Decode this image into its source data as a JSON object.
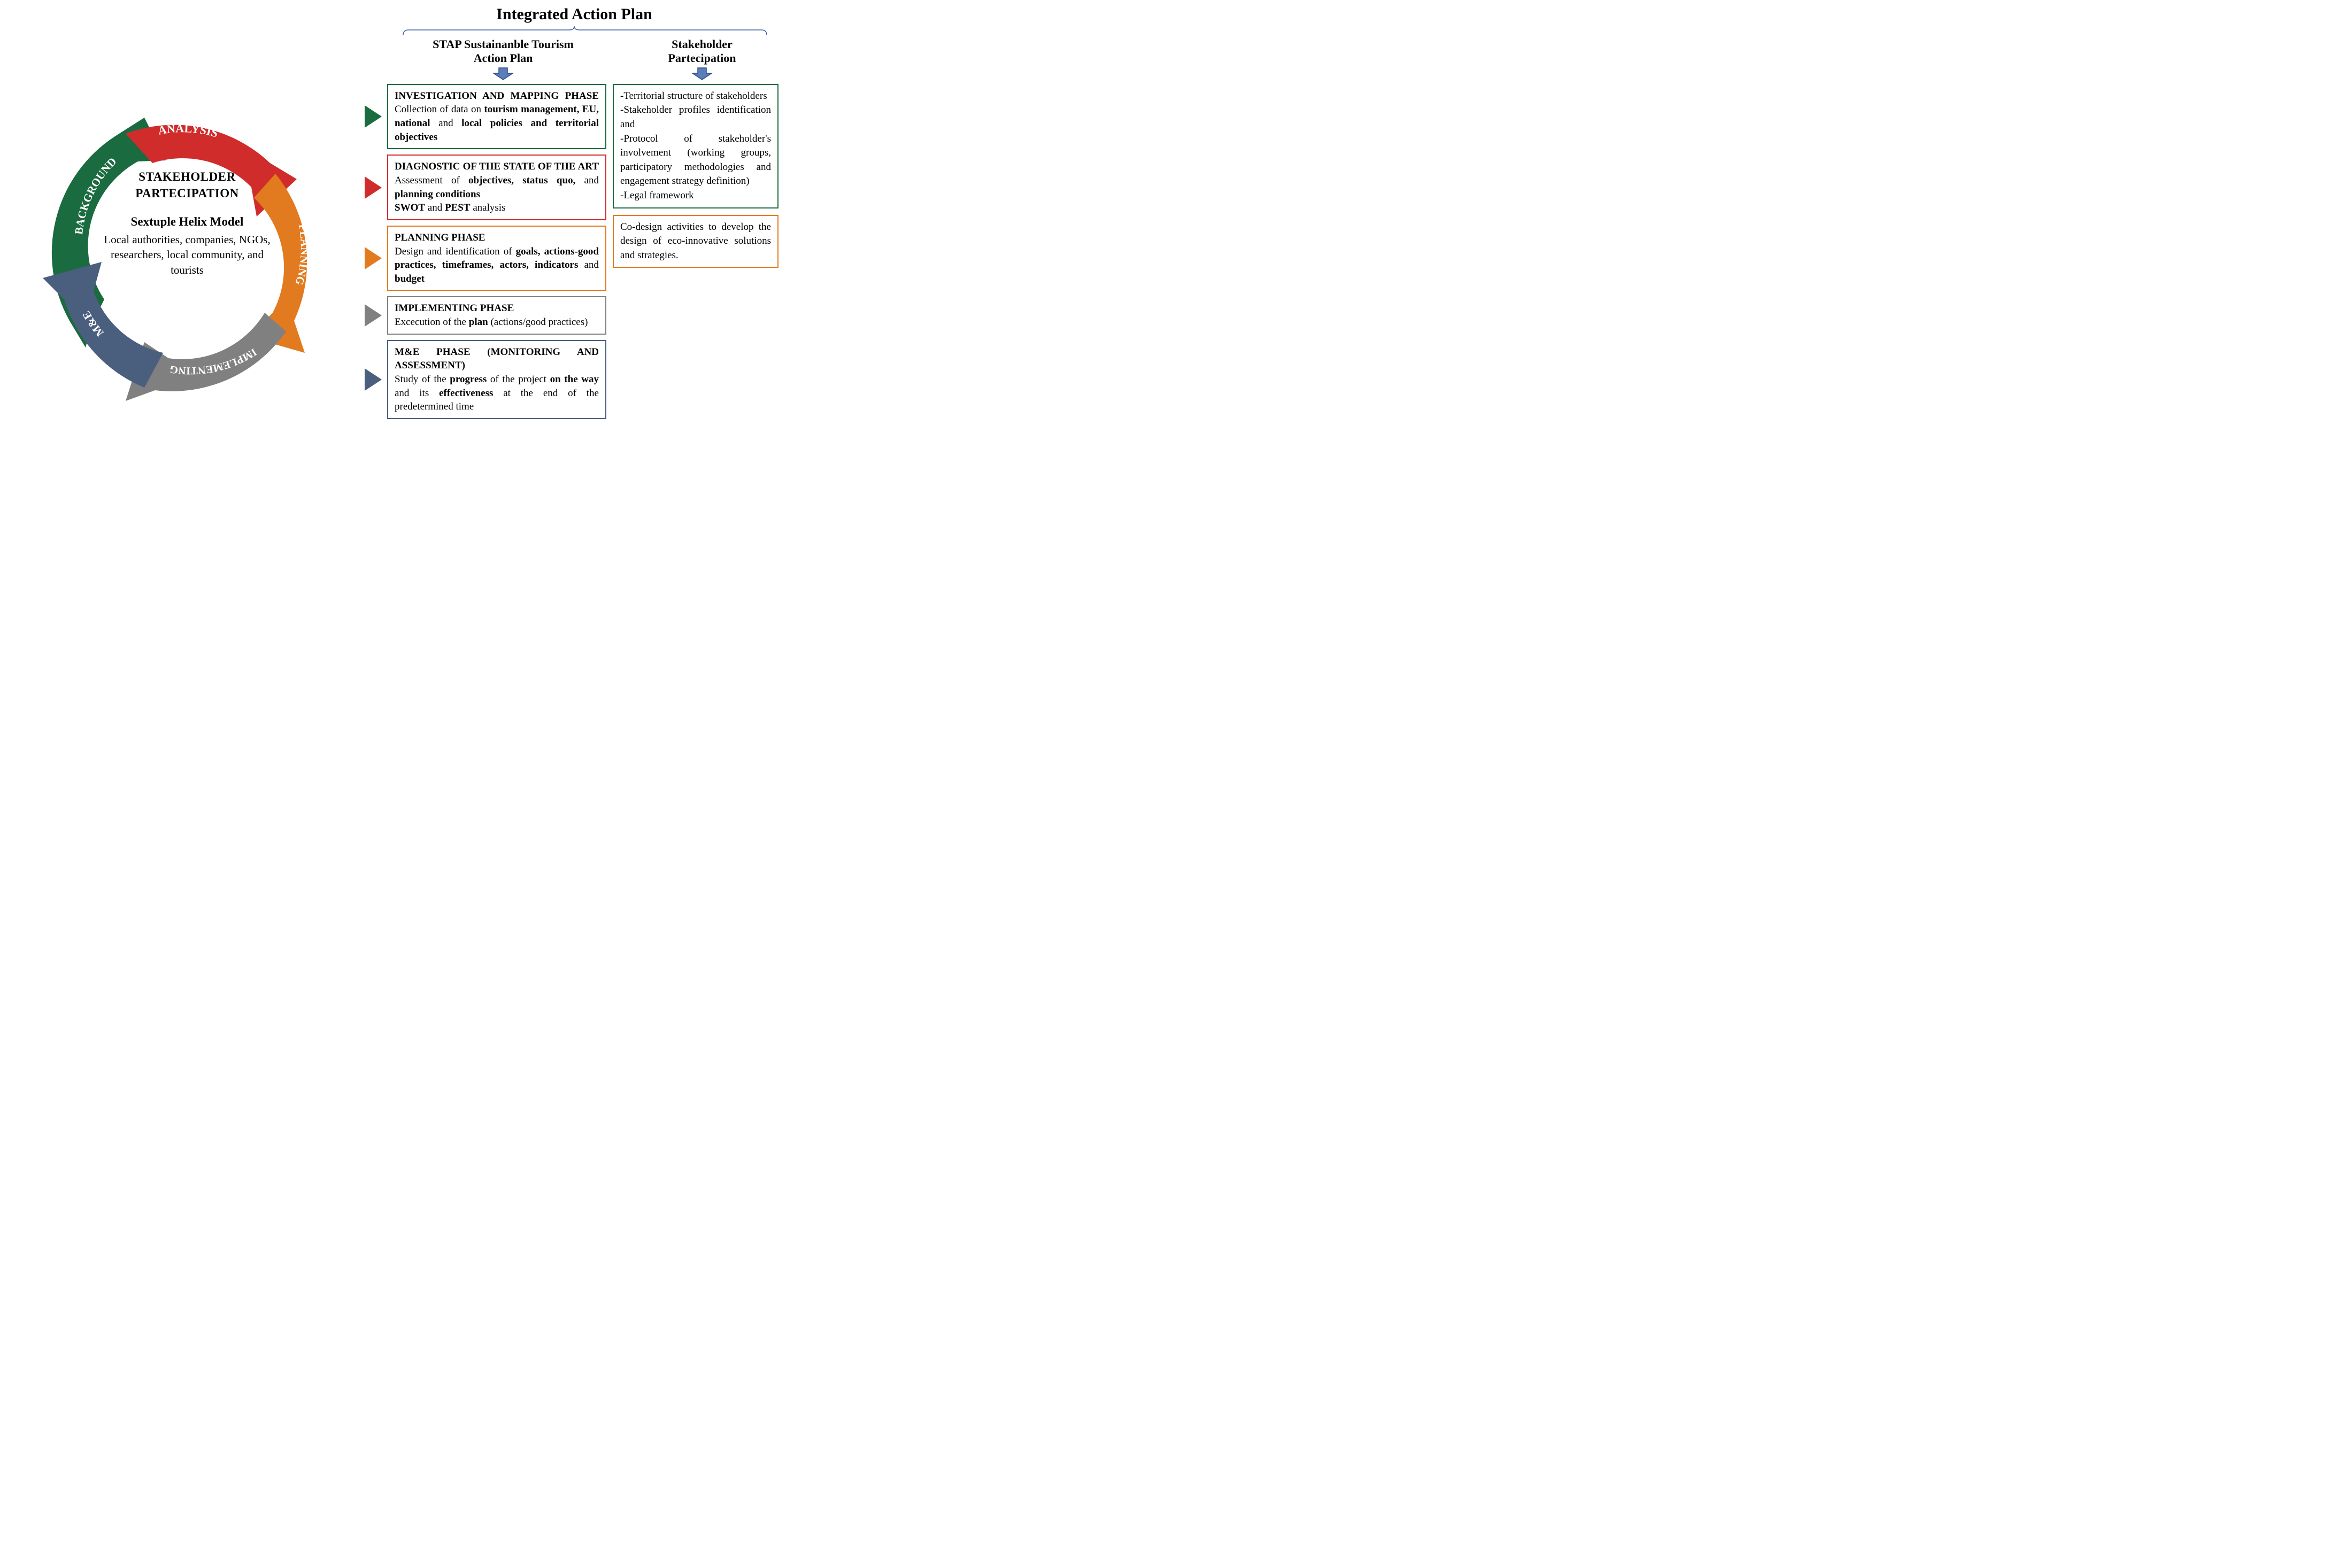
{
  "colors": {
    "background_green": "#1a6b3f",
    "analysis_red": "#d02c2c",
    "planning_orange": "#e27a1f",
    "implementing_gray": "#808080",
    "me_blue": "#4a5e7e",
    "arrow_blue_fill": "#5b7db8",
    "arrow_blue_stroke": "#2a4d8a",
    "bracket_stroke": "#3a5fa8"
  },
  "cycle": {
    "segments": [
      {
        "label": "BACKGROUND",
        "color": "#1a6b3f"
      },
      {
        "label": "ANALYSIS",
        "color": "#d02c2c"
      },
      {
        "label": "PLANNING",
        "color": "#e27a1f"
      },
      {
        "label": "IMPLEMENTING",
        "color": "#808080"
      },
      {
        "label": "M&E",
        "color": "#4a5e7e"
      }
    ],
    "center": {
      "title1_line1": "STAKEHOLDER",
      "title1_line2": "PARTECIPATION",
      "title2": "Sextuple Helix Model",
      "body": "Local authorities, companies, NGOs, researchers, local community, and tourists"
    }
  },
  "right": {
    "main_header": "Integrated Action Plan",
    "col1_header_line1": "STAP Sustainanble Tourism",
    "col1_header_line2": "Action Plan",
    "col2_header_line1": "Stakeholder",
    "col2_header_line2": "Partecipation",
    "phases": [
      {
        "key": "investigation",
        "arrow_color": "#1a6b3f",
        "border_color": "#1a6b3f",
        "title_html": "INVESTIGATION AND MAPPING PHASE",
        "title_justify_last": true,
        "body_html": "Collection of data on <b>tourism management, EU, national</b> and <b>local policies and territorial objectives</b>"
      },
      {
        "key": "diagnostic",
        "arrow_color": "#d02c2c",
        "border_color": "#d02c2c",
        "title_html": "DIAGNOSTIC OF THE STATE OF THE ART",
        "title_justify_last": true,
        "body_html": "Assessment of <b>objectives, status quo,</b> and <b>planning conditions</b><br><b>SWOT</b> and <b>PEST</b> analysis"
      },
      {
        "key": "planning",
        "arrow_color": "#e27a1f",
        "border_color": "#e27a1f",
        "title_html": "PLANNING PHASE",
        "title_justify_last": false,
        "body_html": "Design and identification of <b>goals, actions-good practices, timeframes, actors, indicators</b> and <b>budget</b>"
      },
      {
        "key": "implementing",
        "arrow_color": "#808080",
        "border_color": "#808080",
        "title_html": "IMPLEMENTING PHASE",
        "title_justify_last": false,
        "body_html": "Excecution of the <b>plan</b> (actions/good practices)"
      },
      {
        "key": "me",
        "arrow_color": "#4a5e7e",
        "border_color": "#4a5e7e",
        "title_html": "M&E PHASE (MONITORING AND ASSESSMENT)",
        "title_justify_last": false,
        "body_html": "Study of the <b>progress</b> of the project <b>on the way</b> and its <b>effectiveness</b> at the end of the predetermined time"
      }
    ],
    "stake_boxes": [
      {
        "border_color": "#1a6b3f",
        "body_html": "-Territorial structure of stakeholders<br>-Stakeholder profiles identification and<br>-Protocol of stakeholder's involvement (working groups, participatory methodologies and engagement strategy definition)<br>-Legal framework"
      },
      {
        "border_color": "#e27a1f",
        "body_html": "Co-design activities to develop the design of eco-innovative solutions and strategies."
      }
    ]
  }
}
